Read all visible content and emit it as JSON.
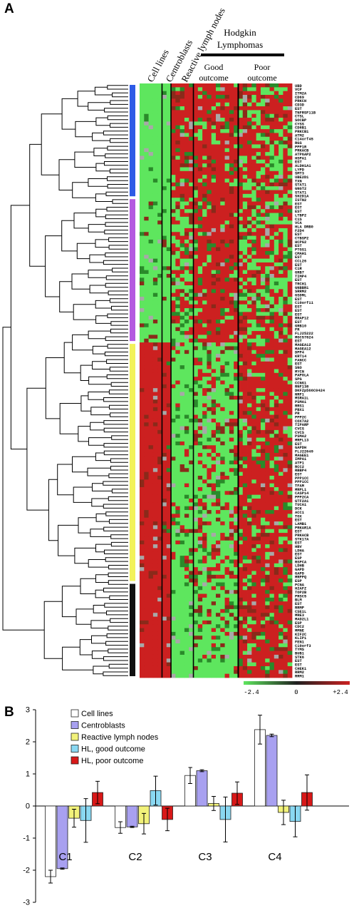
{
  "panel_a": {
    "letter": "A",
    "column_groups": [
      "Cell lines",
      "Centroblasts",
      "Reactive lymph nodes"
    ],
    "hl_title_line1": "Hodgkin",
    "hl_title_line2": "Lymphomas",
    "good_label_line1": "Good",
    "good_label_line2": "outcome",
    "poor_label_line1": "Poor",
    "poor_label_line2": "outcome",
    "cluster_colors": [
      "#2e5be6",
      "#b45ae0",
      "#f2f25a",
      "#111111"
    ],
    "heat_colors": {
      "low": "#5ee65e",
      "mid": "#202020",
      "high": "#cc2020",
      "missing": "#a8a8a8"
    },
    "scale_labels": [
      "-2.4",
      "0",
      "+2.4"
    ],
    "genes": [
      "UBD",
      "VCP",
      "ITM2A",
      "CD69",
      "PRKCH",
      "CD3D",
      "EST",
      "TNFRSF11B",
      "CTSL",
      "SOCBP",
      "CYSS",
      "CD8B1",
      "PRKCB1",
      "ATM2",
      "C14orf45",
      "RGS",
      "PPP1R",
      "PRKACB",
      "ATP6AP2",
      "HSPA1",
      "EST",
      "ALDH1A1",
      "LYPD",
      "SMT3",
      "UBE2D1",
      "TXN",
      "STAT1",
      "GNGT2",
      "STAT1",
      "SH2D1A",
      "ISTN2",
      "EST",
      "EST",
      "EST",
      "LTBP2",
      "C1S",
      "VCA",
      "HLA DRB0",
      "F2D4",
      "EST",
      "CTBSP2",
      "HCPG2",
      "EST",
      "PTGS1",
      "CMAH1",
      "EST",
      "CCL26",
      "EST",
      "C1R",
      "GRB7",
      "TIMP4",
      "EST",
      "TRCH1",
      "GNBBR1",
      "SRRM2",
      "GSDML",
      "EST",
      "C10orf11",
      "EST",
      "EST",
      "EST",
      "RRAP12",
      "EST",
      "GRB10",
      "FR",
      "FLJ25222",
      "MGC57824",
      "EST",
      "MAGEA12",
      "MAGEA12",
      "DPP4",
      "KRT14",
      "FANCC",
      "EST",
      "SNO",
      "MYCN",
      "PAPOLA",
      "SPG",
      "CCNG1",
      "RNF138",
      "DKFZp566C0424",
      "NRF1",
      "MSRA1L",
      "PSMA1",
      "RRS1",
      "PBX1",
      "PR",
      "PPP2C",
      "COX7A2",
      "TIPARP",
      "CVCS",
      "CVCS",
      "PSMA2",
      "MRPL13",
      "EST",
      "GAPDH",
      "FLJ22649",
      "MAGEE1",
      "IMPA1",
      "ATP1",
      "RCC2",
      "RBBP4",
      "EST",
      "PPP1CC",
      "PPP1CC",
      "TFAM",
      "MRPL1",
      "CASP14",
      "PPP2CA",
      "GTF2A1",
      "TUCA1",
      "DCK",
      "ACC1",
      "TOX",
      "EST",
      "LAMB1",
      "PRKAR1A",
      "EST",
      "PRKACB",
      "STK17A",
      "EST",
      "HBV",
      "LDHA",
      "EST",
      "ESP",
      "RSPCA",
      "LDHB",
      "GAPD",
      "GAPD",
      "MRPPQ",
      "ESP",
      "PCNA",
      "H2AFZ",
      "TOP2B",
      "PRSC5",
      "BLM",
      "EST",
      "RRMP",
      "CSE1L",
      "MRE3",
      "MAD2L1",
      "ESP",
      "CDC2",
      "MMNE",
      "KIF2C",
      "KLIP1",
      "FEN1",
      "C10orf3",
      "TYMS",
      "BUB1",
      "STK6",
      "EST",
      "EST",
      "CHEK1",
      "RRM2",
      "RRM1"
    ]
  },
  "panel_b": {
    "letter": "B"
  },
  "chart_data": [
    {
      "type": "heatmap",
      "column_groups": [
        "Cell lines",
        "Centroblasts",
        "Reactive lymph nodes",
        "Hodgkin Lymphomas - Good outcome",
        "Hodgkin Lymphomas - Poor outcome"
      ],
      "clusters": [
        "C1",
        "C2",
        "C3",
        "C4"
      ],
      "color_scale": {
        "min": -2.4,
        "mid": 0,
        "max": 2.4
      }
    },
    {
      "type": "bar",
      "categories": [
        "C1",
        "C2",
        "C3",
        "C4"
      ],
      "ylim": [
        -3,
        3
      ],
      "yticks": [
        -3,
        -2,
        -1,
        0,
        1,
        2,
        3
      ],
      "grid": false,
      "legend_position": "top-left",
      "series": [
        {
          "name": "Cell lines",
          "color": "#ffffff",
          "values": [
            -2.2,
            -0.67,
            0.95,
            2.38
          ],
          "errors": [
            0.2,
            0.18,
            0.25,
            0.45
          ]
        },
        {
          "name": "Centroblasts",
          "color": "#a8a0f0",
          "values": [
            -1.95,
            -0.65,
            1.1,
            2.2
          ],
          "errors": [
            0.02,
            0.02,
            0.03,
            0.04
          ]
        },
        {
          "name": "Reactive lymph nodes",
          "color": "#f2f27a",
          "values": [
            -0.38,
            -0.55,
            0.08,
            -0.2
          ],
          "errors": [
            0.28,
            0.32,
            0.22,
            0.38
          ]
        },
        {
          "name": "HL, good outcome",
          "color": "#8ad8f2",
          "values": [
            -0.45,
            0.48,
            -0.42,
            -0.48
          ],
          "errors": [
            0.68,
            0.45,
            0.7,
            0.48
          ]
        },
        {
          "name": "HL, poor outcome",
          "color": "#d81818",
          "values": [
            0.42,
            -0.42,
            0.4,
            0.42
          ],
          "errors": [
            0.35,
            0.35,
            0.35,
            0.55
          ]
        }
      ]
    }
  ]
}
